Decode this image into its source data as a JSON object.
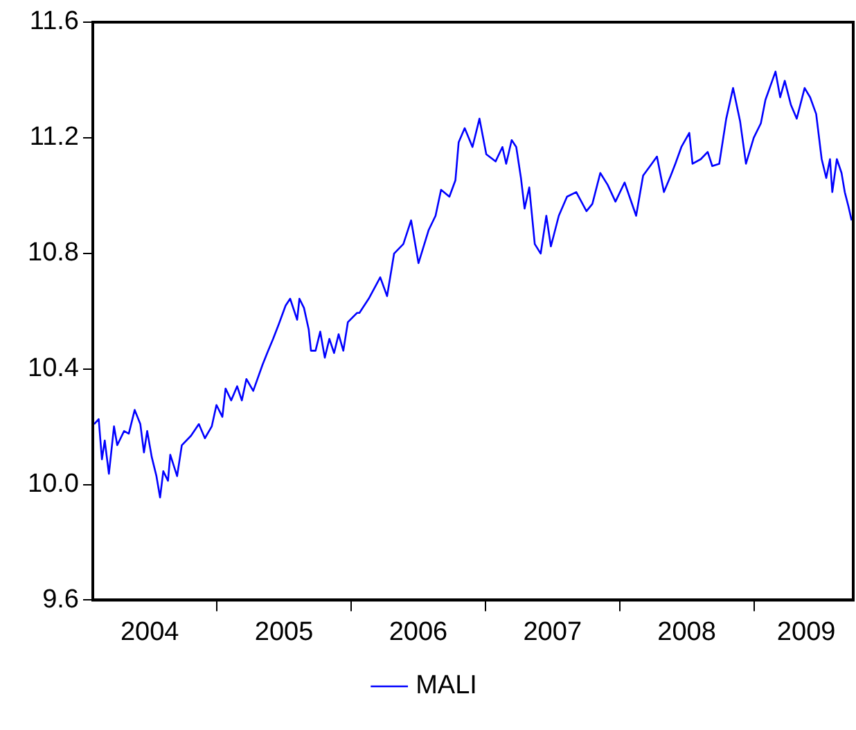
{
  "chart_data": {
    "type": "line",
    "xlim": [
      2004.076,
      2009.74
    ],
    "ylim": [
      9.6,
      11.6
    ],
    "yticks": [
      {
        "value": 9.6,
        "label": "9.6"
      },
      {
        "value": 10.0,
        "label": "10.0"
      },
      {
        "value": 10.4,
        "label": "10.4"
      },
      {
        "value": 10.8,
        "label": "10.8"
      },
      {
        "value": 11.2,
        "label": "11.2"
      },
      {
        "value": 11.6,
        "label": "11.6"
      }
    ],
    "xticks": [
      {
        "value": 2005,
        "label": null
      },
      {
        "value": 2006,
        "label": null
      },
      {
        "value": 2007,
        "label": null
      },
      {
        "value": 2008,
        "label": null
      },
      {
        "value": 2009,
        "label": null
      },
      {
        "value": 2004.5,
        "label": "2004"
      },
      {
        "value": 2005.5,
        "label": "2005"
      },
      {
        "value": 2006.5,
        "label": "2006"
      },
      {
        "value": 2007.5,
        "label": "2007"
      },
      {
        "value": 2008.5,
        "label": "2008"
      },
      {
        "value": 2009.39,
        "label": "2009"
      }
    ],
    "grid": false,
    "legend": "bottom",
    "marker": "none",
    "line_style": "solid",
    "series": [
      {
        "name": "MALI",
        "color": "#0000ff",
        "x": [
          2004.086,
          2004.12,
          2004.144,
          2004.165,
          2004.196,
          2004.234,
          2004.258,
          2004.309,
          2004.344,
          2004.388,
          2004.43,
          2004.457,
          2004.481,
          2004.515,
          2004.55,
          2004.577,
          2004.601,
          2004.636,
          2004.653,
          2004.704,
          2004.739,
          2004.808,
          2004.866,
          2004.911,
          2004.962,
          2004.997,
          2005.041,
          2005.065,
          2005.107,
          2005.151,
          2005.186,
          2005.22,
          2005.271,
          2005.34,
          2005.375,
          2005.419,
          2005.46,
          2005.512,
          2005.546,
          2005.598,
          2005.615,
          2005.649,
          2005.684,
          2005.701,
          2005.735,
          2005.77,
          2005.804,
          2005.838,
          2005.873,
          2005.907,
          2005.942,
          2005.976,
          2006.045,
          2006.062,
          2006.131,
          2006.217,
          2006.268,
          2006.32,
          2006.389,
          2006.447,
          2006.502,
          2006.578,
          2006.629,
          2006.67,
          2006.732,
          2006.777,
          2006.801,
          2006.846,
          2006.904,
          2006.956,
          2007.007,
          2007.076,
          2007.127,
          2007.155,
          2007.196,
          2007.23,
          2007.265,
          2007.292,
          2007.327,
          2007.368,
          2007.412,
          2007.454,
          2007.488,
          2007.547,
          2007.608,
          2007.677,
          2007.753,
          2007.797,
          2007.856,
          2007.911,
          2007.969,
          2008.037,
          2008.123,
          2008.175,
          2008.227,
          2008.278,
          2008.33,
          2008.381,
          2008.415,
          2008.46,
          2008.519,
          2008.543,
          2008.605,
          2008.656,
          2008.69,
          2008.742,
          2008.794,
          2008.845,
          2008.897,
          2008.941,
          2008.999,
          2009.052,
          2009.086,
          2009.161,
          2009.196,
          2009.23,
          2009.275,
          2009.319,
          2009.378,
          2009.419,
          2009.464,
          2009.505,
          2009.539,
          2009.567,
          2009.584,
          2009.618,
          2009.653,
          2009.677,
          2009.704,
          2009.728
        ],
        "values": [
          10.209,
          10.226,
          10.087,
          10.152,
          10.037,
          10.201,
          10.136,
          10.185,
          10.176,
          10.258,
          10.209,
          10.111,
          10.185,
          10.095,
          10.029,
          9.955,
          10.046,
          10.013,
          10.103,
          10.029,
          10.136,
          10.169,
          10.209,
          10.16,
          10.201,
          10.275,
          10.234,
          10.332,
          10.291,
          10.34,
          10.291,
          10.365,
          10.324,
          10.414,
          10.455,
          10.504,
          10.553,
          10.619,
          10.643,
          10.57,
          10.643,
          10.611,
          10.537,
          10.463,
          10.463,
          10.529,
          10.439,
          10.504,
          10.455,
          10.52,
          10.463,
          10.562,
          10.594,
          10.594,
          10.643,
          10.717,
          10.652,
          10.799,
          10.832,
          10.914,
          10.766,
          10.881,
          10.93,
          11.02,
          10.996,
          11.053,
          11.184,
          11.233,
          11.168,
          11.266,
          11.143,
          11.118,
          11.168,
          11.11,
          11.192,
          11.168,
          11.061,
          10.955,
          11.028,
          10.832,
          10.799,
          10.93,
          10.824,
          10.93,
          10.996,
          11.012,
          10.946,
          10.971,
          11.078,
          11.037,
          10.979,
          11.045,
          10.93,
          11.069,
          11.102,
          11.135,
          11.012,
          11.069,
          11.11,
          11.168,
          11.217,
          11.11,
          11.126,
          11.151,
          11.102,
          11.11,
          11.266,
          11.372,
          11.258,
          11.11,
          11.2,
          11.25,
          11.331,
          11.429,
          11.34,
          11.397,
          11.315,
          11.266,
          11.372,
          11.34,
          11.282,
          11.126,
          11.061,
          11.126,
          11.012,
          11.126,
          11.078,
          11.012,
          10.963,
          10.914
        ]
      }
    ]
  }
}
